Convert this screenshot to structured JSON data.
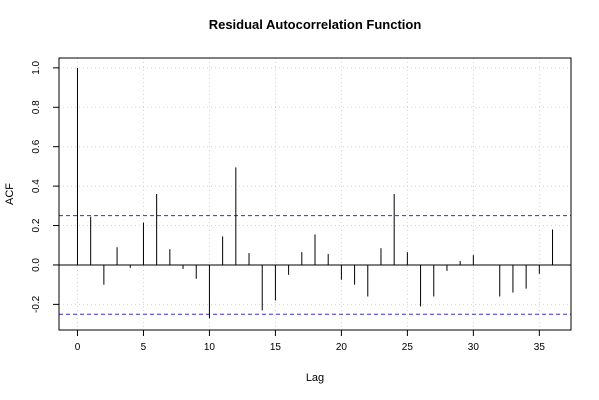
{
  "chart_data": {
    "type": "bar",
    "title": "Residual Autocorrelation Function",
    "xlabel": "Lag",
    "ylabel": "ACF",
    "xlim": [
      -1.4,
      37.4
    ],
    "ylim": [
      -0.33,
      1.05
    ],
    "xticks": [
      0,
      5,
      10,
      15,
      20,
      25,
      30,
      35
    ],
    "yticks": [
      -0.2,
      0.0,
      0.2,
      0.4,
      0.6,
      0.8,
      1.0
    ],
    "ytick_labels": [
      "-0.2",
      "0.0",
      "0.2",
      "0.4",
      "0.6",
      "0.8",
      "1.0"
    ],
    "grid": true,
    "confidence_bounds": [
      0.25,
      -0.25
    ],
    "colors": {
      "bars": "#000000",
      "bounds": "#3333cc",
      "grid": "#d3d3d3",
      "zero_line": "#000000"
    },
    "series": [
      {
        "x": [
          0,
          1,
          2,
          3,
          4,
          5,
          6,
          7,
          8,
          9,
          10,
          11,
          12,
          13,
          14,
          15,
          16,
          17,
          18,
          19,
          20,
          21,
          22,
          23,
          24,
          25,
          26,
          27,
          28,
          29,
          30,
          31,
          32,
          33,
          34,
          35,
          36
        ],
        "values": [
          1.0,
          0.245,
          -0.1,
          0.09,
          -0.015,
          0.215,
          0.36,
          0.08,
          -0.02,
          -0.07,
          -0.27,
          0.145,
          0.495,
          0.06,
          -0.23,
          -0.18,
          -0.05,
          0.065,
          0.155,
          0.055,
          -0.075,
          -0.1,
          -0.16,
          0.085,
          0.36,
          0.065,
          -0.21,
          -0.16,
          -0.03,
          0.02,
          0.05,
          0.0,
          -0.16,
          -0.14,
          -0.12,
          -0.045,
          0.18
        ]
      }
    ]
  }
}
